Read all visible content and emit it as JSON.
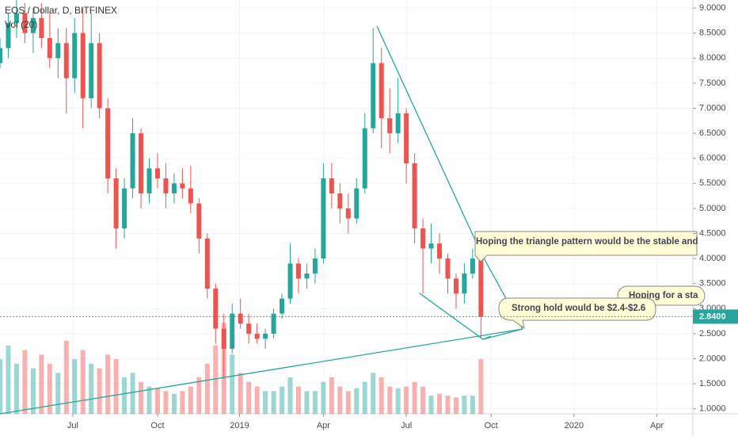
{
  "chart_data": {
    "type": "candlestick",
    "title": "EOS / Dollar, D, BITFINEX",
    "subtitle": "Vol (20)",
    "up_color": "#26a69a",
    "down_color": "#ef5350",
    "xlim": [
      0,
      752
    ],
    "ylim": [
      0.9,
      9.16
    ],
    "xticks": [
      {
        "value": 79,
        "label": "Jul"
      },
      {
        "value": 171,
        "label": "Oct"
      },
      {
        "value": 260,
        "label": "2019"
      },
      {
        "value": 351,
        "label": "Apr"
      },
      {
        "value": 441,
        "label": "Jul"
      },
      {
        "value": 533,
        "label": "Oct"
      },
      {
        "value": 623,
        "label": "2020"
      },
      {
        "value": 713,
        "label": "Apr"
      }
    ],
    "yticks": [
      {
        "value": 9,
        "label": "9.0000"
      },
      {
        "value": 8.5,
        "label": "8.5000"
      },
      {
        "value": 8,
        "label": "8.0000"
      },
      {
        "value": 7.5,
        "label": "7.5000"
      },
      {
        "value": 7,
        "label": "7.0000"
      },
      {
        "value": 6.5,
        "label": "6.5000"
      },
      {
        "value": 6,
        "label": "6.0000"
      },
      {
        "value": 5.5,
        "label": "5.5000"
      },
      {
        "value": 5,
        "label": "5.0000"
      },
      {
        "value": 4.5,
        "label": "4.5000"
      },
      {
        "value": 4,
        "label": "4.0000"
      },
      {
        "value": 3.5,
        "label": "3.5000"
      },
      {
        "value": 3,
        "label": "3.0000"
      },
      {
        "value": 2.5,
        "label": "2.5000"
      },
      {
        "value": 2,
        "label": "2.0000"
      },
      {
        "value": 1.5,
        "label": "1.5000"
      },
      {
        "value": 1,
        "label": "1.0000"
      }
    ],
    "last_price": {
      "value": 2.84,
      "label": "2.8400"
    },
    "x": [
      0,
      9,
      18,
      27,
      36,
      45,
      54,
      63,
      72,
      81,
      90,
      99,
      108,
      117,
      126,
      135,
      144,
      153,
      162,
      171,
      180,
      189,
      198,
      207,
      216,
      225,
      234,
      243,
      252,
      261,
      270,
      279,
      288,
      297,
      306,
      315,
      324,
      333,
      342,
      351,
      360,
      369,
      378,
      387,
      396,
      405,
      414,
      423,
      432,
      441,
      450,
      459,
      468,
      477,
      486,
      495,
      504,
      513,
      522
    ],
    "open": [
      7.9,
      8.2,
      8.7,
      8.9,
      8.5,
      8.8,
      8.4,
      8.0,
      8.3,
      7.6,
      8.5,
      7.2,
      8.3,
      7.0,
      5.6,
      4.6,
      5.4,
      6.5,
      5.3,
      5.8,
      5.6,
      5.3,
      5.5,
      5.4,
      5.1,
      4.4,
      3.4,
      2.6,
      2.2,
      2.9,
      2.7,
      2.5,
      2.4,
      2.5,
      2.9,
      3.2,
      3.9,
      3.6,
      3.7,
      4.0,
      5.6,
      5.3,
      5.0,
      4.8,
      5.4,
      6.6,
      7.9,
      6.8,
      6.5,
      6.9,
      5.9,
      4.6,
      4.2,
      4.3,
      4.0,
      3.6,
      3.3,
      3.7,
      4.0
    ],
    "high": [
      8.4,
      8.9,
      9.2,
      9.1,
      9.0,
      9.1,
      8.9,
      8.6,
      8.6,
      8.8,
      9.0,
      8.9,
      8.5,
      7.2,
      5.8,
      5.6,
      6.8,
      6.6,
      6.0,
      6.1,
      5.9,
      5.7,
      5.8,
      5.85,
      5.2,
      4.5,
      3.5,
      2.9,
      3.1,
      3.2,
      2.9,
      2.7,
      2.6,
      3.0,
      3.3,
      4.3,
      4.0,
      3.9,
      4.2,
      5.9,
      5.9,
      5.5,
      5.3,
      5.6,
      6.9,
      8.6,
      8.2,
      7.4,
      7.6,
      7.0,
      6.1,
      4.8,
      4.7,
      4.5,
      4.1,
      3.7,
      3.9,
      4.2,
      4.2
    ],
    "low": [
      7.8,
      8.0,
      8.4,
      8.3,
      8.1,
      8.2,
      7.8,
      7.6,
      6.9,
      7.3,
      6.6,
      7.0,
      6.8,
      5.3,
      4.2,
      4.4,
      5.2,
      5.0,
      5.1,
      5.4,
      5.0,
      5.1,
      5.2,
      4.9,
      4.1,
      3.2,
      2.3,
      1.6,
      2.1,
      2.6,
      2.3,
      2.3,
      2.2,
      2.4,
      2.8,
      3.1,
      3.3,
      3.4,
      3.5,
      3.9,
      5.0,
      4.7,
      4.5,
      4.7,
      5.3,
      6.5,
      6.2,
      6.1,
      6.3,
      5.5,
      4.3,
      3.3,
      3.9,
      3.7,
      3.3,
      3.0,
      3.1,
      3.6,
      2.4
    ],
    "close": [
      8.2,
      8.7,
      8.9,
      8.5,
      8.8,
      8.4,
      8.0,
      8.3,
      7.6,
      8.5,
      7.2,
      8.3,
      7.0,
      5.6,
      4.6,
      5.4,
      6.5,
      5.3,
      5.8,
      5.6,
      5.3,
      5.5,
      5.4,
      5.1,
      4.4,
      3.4,
      2.6,
      2.2,
      2.9,
      2.7,
      2.5,
      2.4,
      2.5,
      2.9,
      3.2,
      3.9,
      3.6,
      3.7,
      4.0,
      5.6,
      5.3,
      5.0,
      4.8,
      5.4,
      6.6,
      7.9,
      6.8,
      6.5,
      6.9,
      5.9,
      4.6,
      4.2,
      4.3,
      4.0,
      3.6,
      3.3,
      3.7,
      4.0,
      2.84
    ],
    "volume": [
      60,
      75,
      55,
      70,
      50,
      65,
      55,
      45,
      80,
      60,
      70,
      55,
      50,
      65,
      60,
      40,
      45,
      35,
      30,
      28,
      25,
      22,
      25,
      30,
      40,
      55,
      75,
      100,
      65,
      45,
      35,
      30,
      25,
      25,
      30,
      40,
      30,
      25,
      25,
      35,
      40,
      30,
      25,
      28,
      35,
      45,
      40,
      30,
      28,
      30,
      35,
      30,
      20,
      22,
      20,
      18,
      20,
      20,
      60
    ],
    "annotations": [
      "Hoping the triangle pattern would be the stable and",
      "Strong hold would be $2.4-$2.6",
      "Hoping for a sta"
    ]
  }
}
